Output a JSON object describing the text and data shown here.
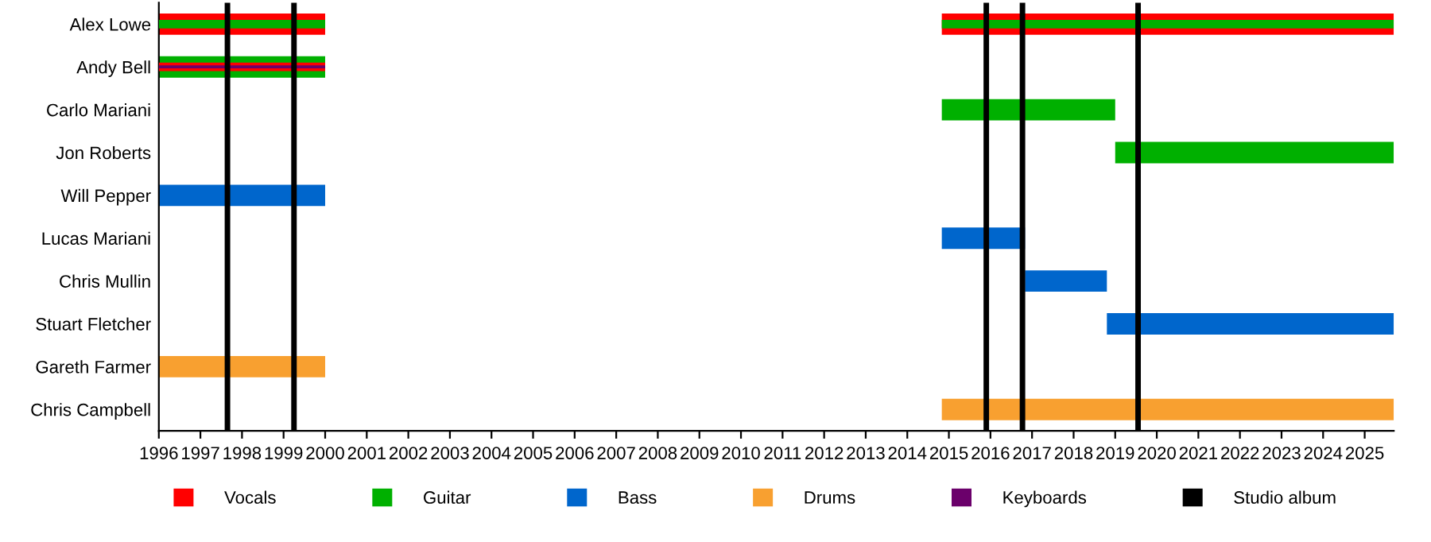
{
  "chart_data": {
    "type": "bar",
    "orientation": "horizontal",
    "categories": [
      "Alex Lowe",
      "Andy Bell",
      "Carlo Mariani",
      "Jon Roberts",
      "Will Pepper",
      "Lucas Mariani",
      "Chris Mullin",
      "Stuart Fletcher",
      "Gareth Farmer",
      "Chris Campbell"
    ],
    "series": [
      {
        "name": "Vocals",
        "color": "#ff0000",
        "base": [
          1996,
          null,
          null,
          null,
          null,
          null,
          null,
          null,
          null,
          null
        ],
        "values": [
          4,
          null,
          null,
          null,
          null,
          null,
          null,
          null,
          null,
          null
        ]
      },
      {
        "color": "#ff0000",
        "base": [
          2014.83,
          null,
          null,
          null,
          null,
          null,
          null,
          null,
          null,
          null
        ],
        "values": [
          10.87,
          null,
          null,
          null,
          null,
          null,
          null,
          null,
          null,
          null
        ]
      },
      {
        "name": "Guitar",
        "color": "#00b000",
        "base": [
          null,
          1996,
          2014.83,
          2019.0,
          null,
          null,
          null,
          null,
          null,
          null
        ],
        "values": [
          null,
          4,
          4.17,
          6.7,
          null,
          null,
          null,
          null,
          null,
          null
        ]
      },
      {
        "name": "Bass",
        "color": "#0066cc",
        "base": [
          null,
          null,
          null,
          null,
          1996,
          2014.83,
          2016.83,
          2018.8,
          null,
          null
        ],
        "values": [
          null,
          null,
          null,
          null,
          4,
          2.0,
          1.97,
          6.9,
          null,
          null
        ]
      },
      {
        "name": "Drums",
        "color": "#f8a030",
        "base": [
          null,
          null,
          null,
          null,
          null,
          null,
          null,
          null,
          1996,
          2014.83
        ],
        "values": [
          null,
          null,
          null,
          null,
          null,
          null,
          null,
          null,
          4,
          10.87
        ]
      },
      {
        "color": "#00b000",
        "base": [
          1996,
          null,
          null,
          null,
          null,
          null,
          null,
          null,
          null,
          null
        ],
        "values": [
          4,
          null,
          null,
          null,
          null,
          null,
          null,
          null,
          null,
          null
        ]
      },
      {
        "color": "#00b000",
        "base": [
          2014.83,
          null,
          null,
          null,
          null,
          null,
          null,
          null,
          null,
          null
        ],
        "values": [
          10.87,
          null,
          null,
          null,
          null,
          null,
          null,
          null,
          null,
          null
        ]
      },
      {
        "color": "#ff0000",
        "base": [
          null,
          1996,
          null,
          null,
          null,
          null,
          null,
          null,
          null,
          null
        ],
        "values": [
          null,
          4,
          null,
          null,
          null,
          null,
          null,
          null,
          null,
          null
        ]
      },
      {
        "name": "Keyboards",
        "color": "#6b006b",
        "base": [
          null,
          1996,
          null,
          null,
          null,
          null,
          null,
          null,
          null,
          null
        ],
        "values": [
          null,
          4,
          null,
          null,
          null,
          null,
          null,
          null,
          null,
          null
        ]
      }
    ],
    "xlim": [
      1996,
      2025.7
    ],
    "xticks": [
      1996,
      1997,
      1998,
      1999,
      2000,
      2001,
      2002,
      2003,
      2004,
      2005,
      2006,
      2007,
      2008,
      2009,
      2010,
      2011,
      2012,
      2013,
      2014,
      2015,
      2016,
      2017,
      2018,
      2019,
      2020,
      2021,
      2022,
      2023,
      2024,
      2025
    ],
    "ref_lines": [
      {
        "axis": "x",
        "value": 1997.65,
        "label": "Studio album",
        "color": "#000000"
      },
      {
        "axis": "x",
        "value": 1999.25,
        "color": "#000000"
      },
      {
        "axis": "x",
        "value": 2015.9,
        "color": "#000000"
      },
      {
        "axis": "x",
        "value": 2016.77,
        "color": "#000000"
      },
      {
        "axis": "x",
        "value": 2019.55,
        "color": "#000000"
      }
    ],
    "grid": false,
    "legend": "bottom"
  }
}
